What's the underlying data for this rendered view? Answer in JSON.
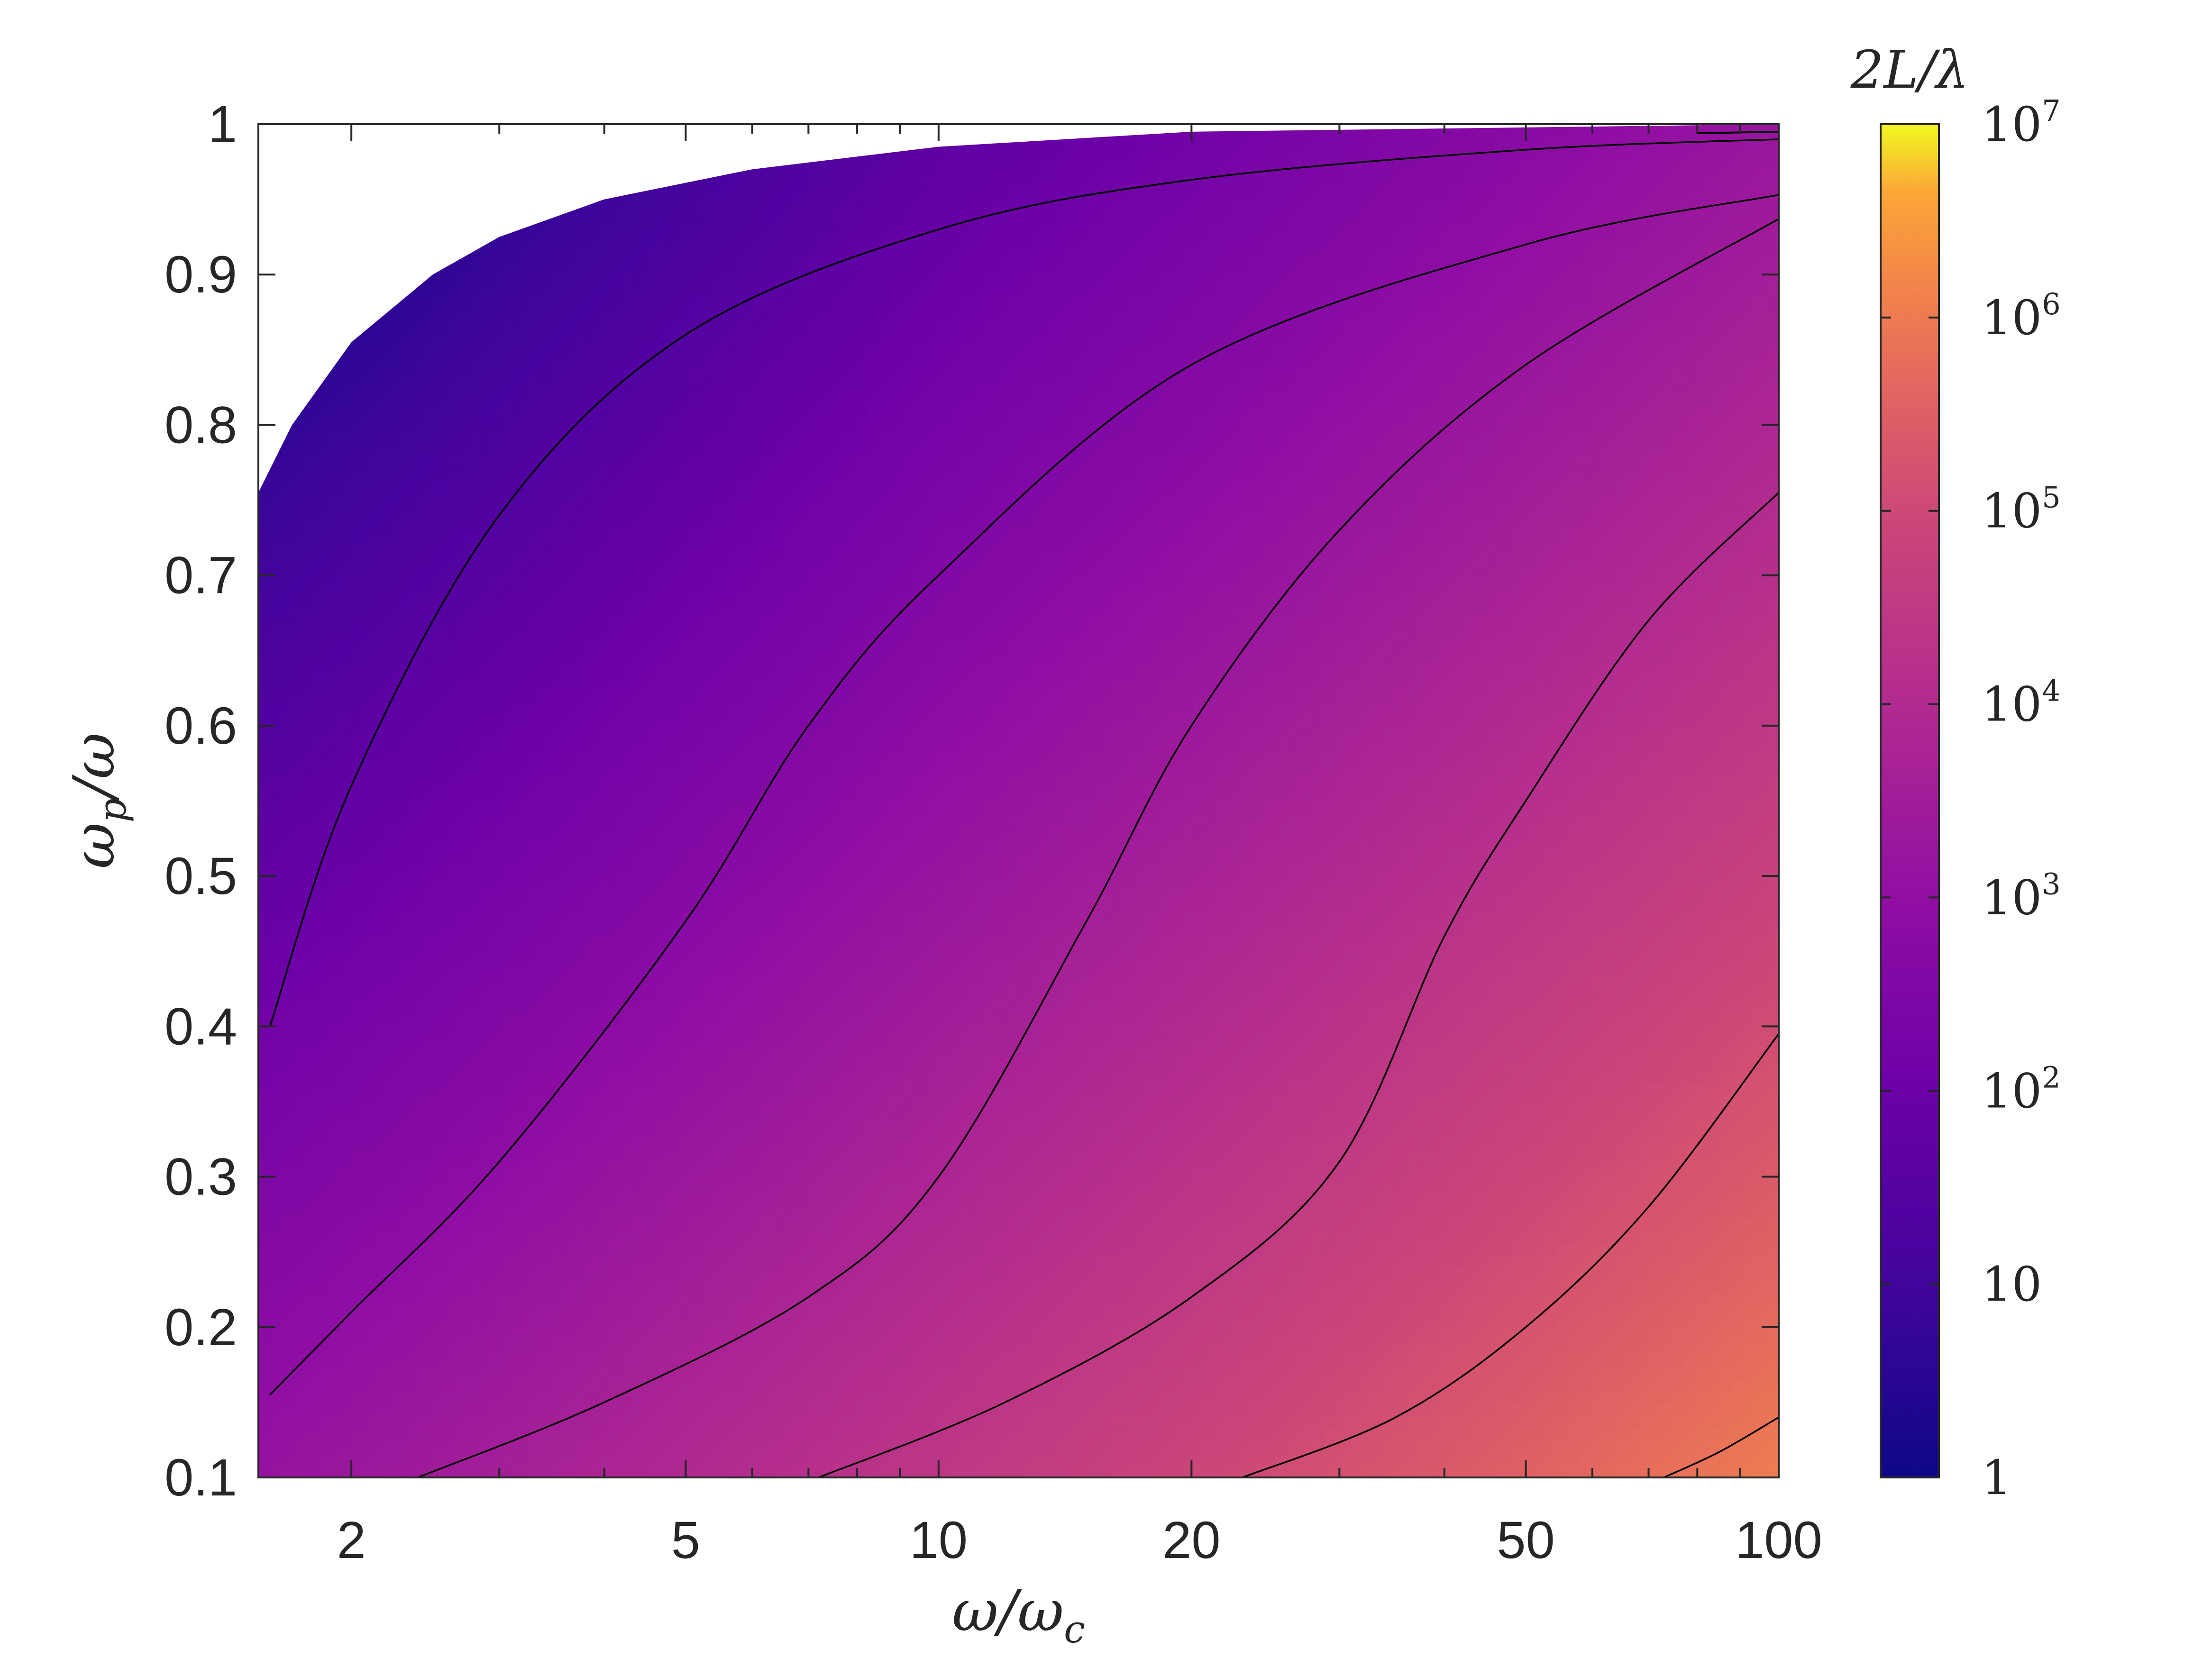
{
  "chart_data": {
    "type": "heatmap",
    "title": "",
    "xlabel": "ω/ωc",
    "xlabel_main": "ω/ω",
    "xlabel_sub": "c",
    "ylabel": "ωp/ω",
    "ylabel_first": "ω",
    "ylabel_sub": "p",
    "ylabel_rest": "/ω",
    "xscale": "log",
    "xlim": [
      1.55,
      100
    ],
    "ylim": [
      0.1,
      1
    ],
    "grid": false,
    "x_ticks": [
      {
        "value": 2,
        "label": "2"
      },
      {
        "value": 5,
        "label": "5"
      },
      {
        "value": 10,
        "label": "10"
      },
      {
        "value": 20,
        "label": "20"
      },
      {
        "value": 50,
        "label": "50"
      },
      {
        "value": 100,
        "label": "100"
      }
    ],
    "y_ticks": [
      {
        "value": 0.1,
        "label": "0.1"
      },
      {
        "value": 0.2,
        "label": "0.2"
      },
      {
        "value": 0.3,
        "label": "0.3"
      },
      {
        "value": 0.4,
        "label": "0.4"
      },
      {
        "value": 0.5,
        "label": "0.5"
      },
      {
        "value": 0.6,
        "label": "0.6"
      },
      {
        "value": 0.7,
        "label": "0.7"
      },
      {
        "value": 0.8,
        "label": "0.8"
      },
      {
        "value": 0.9,
        "label": "0.9"
      },
      {
        "value": 1,
        "label": "1"
      }
    ],
    "colorbar": {
      "label": "2L/λ",
      "scale": "log",
      "colormap": "plasma",
      "lim": [
        1,
        10000000
      ],
      "ticks": [
        {
          "value": 1,
          "base": "1",
          "exp": ""
        },
        {
          "value": 10,
          "base": "10",
          "exp": ""
        },
        {
          "value": 100,
          "base": "10",
          "exp": "2"
        },
        {
          "value": 1000,
          "base": "10",
          "exp": "3"
        },
        {
          "value": 10000,
          "base": "10",
          "exp": "4"
        },
        {
          "value": 100000,
          "base": "10",
          "exp": "5"
        },
        {
          "value": 1000000,
          "base": "10",
          "exp": "6"
        },
        {
          "value": 10000000,
          "base": "10",
          "exp": "7"
        }
      ]
    },
    "contour_levels": [
      10,
      100,
      1000,
      10000,
      100000,
      1000000
    ],
    "contour_lines": [
      {
        "level": 10,
        "points": [
          [
            1.6,
            0.4
          ],
          [
            2.0,
            0.56
          ],
          [
            3.0,
            0.74
          ],
          [
            5.0,
            0.86
          ],
          [
            10,
            0.93
          ],
          [
            20,
            0.963
          ],
          [
            50,
            0.983
          ],
          [
            100,
            0.99
          ]
        ]
      },
      {
        "level": 100,
        "points": [
          [
            1.6,
            0.155
          ],
          [
            2.0,
            0.21
          ],
          [
            3.0,
            0.31
          ],
          [
            5.0,
            0.47
          ],
          [
            7.0,
            0.6
          ],
          [
            10,
            0.7
          ],
          [
            20,
            0.84
          ],
          [
            50,
            0.92
          ],
          [
            100,
            0.953
          ]
        ]
      },
      {
        "level": 1000,
        "points": [
          [
            2.4,
            0.1
          ],
          [
            4.0,
            0.15
          ],
          [
            7.0,
            0.22
          ],
          [
            10,
            0.3
          ],
          [
            15,
            0.47
          ],
          [
            20,
            0.6
          ],
          [
            30,
            0.73
          ],
          [
            50,
            0.84
          ],
          [
            100,
            0.937
          ]
        ]
      },
      {
        "level": 10000,
        "points": [
          [
            7.2,
            0.1
          ],
          [
            12,
            0.15
          ],
          [
            20,
            0.22
          ],
          [
            30,
            0.31
          ],
          [
            40,
            0.46
          ],
          [
            50,
            0.55
          ],
          [
            70,
            0.67
          ],
          [
            100,
            0.755
          ]
        ]
      },
      {
        "level": 100000,
        "points": [
          [
            23,
            0.1
          ],
          [
            35,
            0.14
          ],
          [
            50,
            0.2
          ],
          [
            70,
            0.28
          ],
          [
            100,
            0.395
          ]
        ]
      },
      {
        "level": 1000000,
        "points": [
          [
            73,
            0.1
          ],
          [
            85,
            0.117
          ],
          [
            100,
            0.14
          ]
        ]
      }
    ],
    "top_contour": {
      "points": [
        [
          80,
          0.994
        ],
        [
          100,
          0.995
        ]
      ]
    },
    "upper_boundary": {
      "points": [
        [
          1.55,
          0.755
        ],
        [
          1.7,
          0.8
        ],
        [
          2.0,
          0.855
        ],
        [
          2.5,
          0.9
        ],
        [
          3.0,
          0.925
        ],
        [
          4.0,
          0.95
        ],
        [
          6.0,
          0.97
        ],
        [
          10,
          0.985
        ],
        [
          20,
          0.995
        ],
        [
          100,
          1.0
        ]
      ]
    }
  }
}
